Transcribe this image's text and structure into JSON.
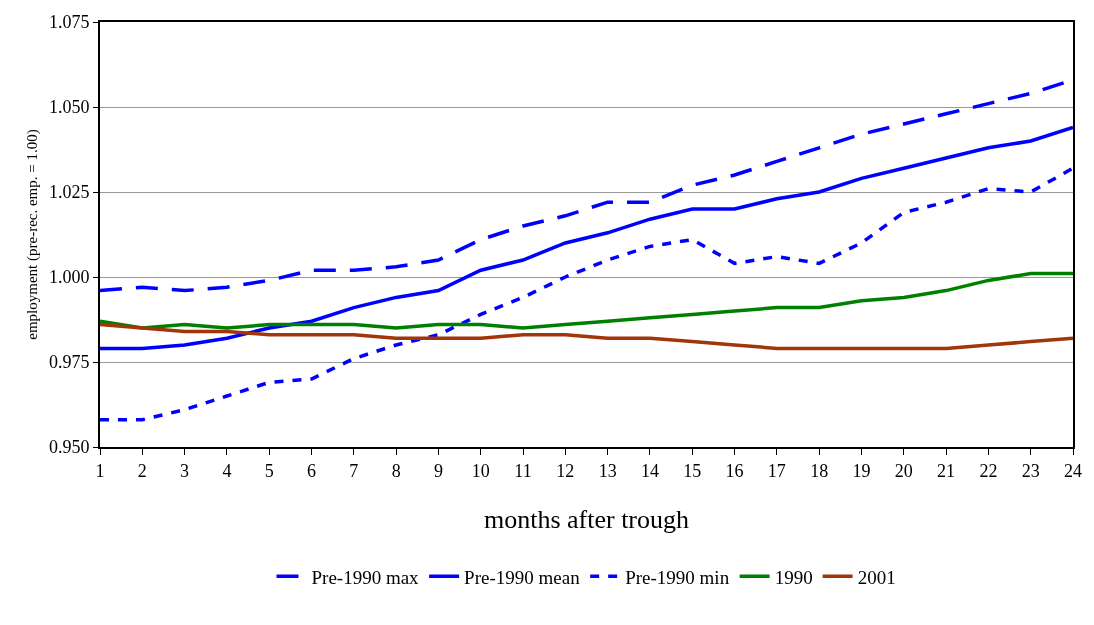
{
  "chart_data": {
    "type": "line",
    "xlabel": "months after trough",
    "ylabel": "employment (pre-rec. emp. = 1.00)",
    "x": [
      1,
      2,
      3,
      4,
      5,
      6,
      7,
      8,
      9,
      10,
      11,
      12,
      13,
      14,
      15,
      16,
      17,
      18,
      19,
      20,
      21,
      22,
      23,
      24
    ],
    "series": [
      {
        "name": "Pre-1990 max",
        "color": "#0000ff",
        "line_style": "dashed",
        "values": [
          0.996,
          0.997,
          0.996,
          0.997,
          0.999,
          1.002,
          1.002,
          1.003,
          1.005,
          1.011,
          1.015,
          1.018,
          1.022,
          1.022,
          1.027,
          1.03,
          1.034,
          1.038,
          1.042,
          1.045,
          1.048,
          1.051,
          1.054,
          1.058
        ]
      },
      {
        "name": "Pre-1990 mean",
        "color": "#0000ff",
        "line_style": "solid",
        "values": [
          0.979,
          0.979,
          0.98,
          0.982,
          0.985,
          0.987,
          0.991,
          0.994,
          0.996,
          1.002,
          1.005,
          1.01,
          1.013,
          1.017,
          1.02,
          1.02,
          1.023,
          1.025,
          1.029,
          1.032,
          1.035,
          1.038,
          1.04,
          1.044
        ]
      },
      {
        "name": "Pre-1990 min",
        "color": "#0000ff",
        "line_style": "dotted",
        "values": [
          0.958,
          0.958,
          0.961,
          0.965,
          0.969,
          0.97,
          0.976,
          0.98,
          0.983,
          0.989,
          0.994,
          1.0,
          1.005,
          1.009,
          1.011,
          1.004,
          1.006,
          1.004,
          1.01,
          1.019,
          1.022,
          1.026,
          1.025,
          1.032
        ]
      },
      {
        "name": "1990",
        "color": "#008000",
        "line_style": "solid",
        "values": [
          0.987,
          0.985,
          0.986,
          0.985,
          0.986,
          0.986,
          0.986,
          0.985,
          0.986,
          0.986,
          0.985,
          0.986,
          0.987,
          0.988,
          0.989,
          0.99,
          0.991,
          0.991,
          0.993,
          0.994,
          0.996,
          0.999,
          1.001,
          1.001
        ]
      },
      {
        "name": "2001",
        "color": "#a0360a",
        "line_style": "solid",
        "values": [
          0.986,
          0.985,
          0.984,
          0.984,
          0.983,
          0.983,
          0.983,
          0.982,
          0.982,
          0.982,
          0.983,
          0.983,
          0.982,
          0.982,
          0.981,
          0.98,
          0.979,
          0.979,
          0.979,
          0.979,
          0.979,
          0.98,
          0.981,
          0.982
        ]
      }
    ],
    "xlim": [
      1,
      24
    ],
    "xticks": [
      1,
      2,
      3,
      4,
      5,
      6,
      7,
      8,
      9,
      10,
      11,
      12,
      13,
      14,
      15,
      16,
      17,
      18,
      19,
      20,
      21,
      22,
      23,
      24
    ],
    "ylim": [
      0.95,
      1.075
    ],
    "yticks": [
      {
        "value": 0.95,
        "label": "0.950"
      },
      0.975,
      {
        "value": 1.0,
        "label": "1.000"
      },
      1.025,
      {
        "value": 1.05,
        "label": "1.050"
      },
      1.075
    ],
    "grid": "y",
    "legend": "bottom",
    "marker": "none"
  }
}
